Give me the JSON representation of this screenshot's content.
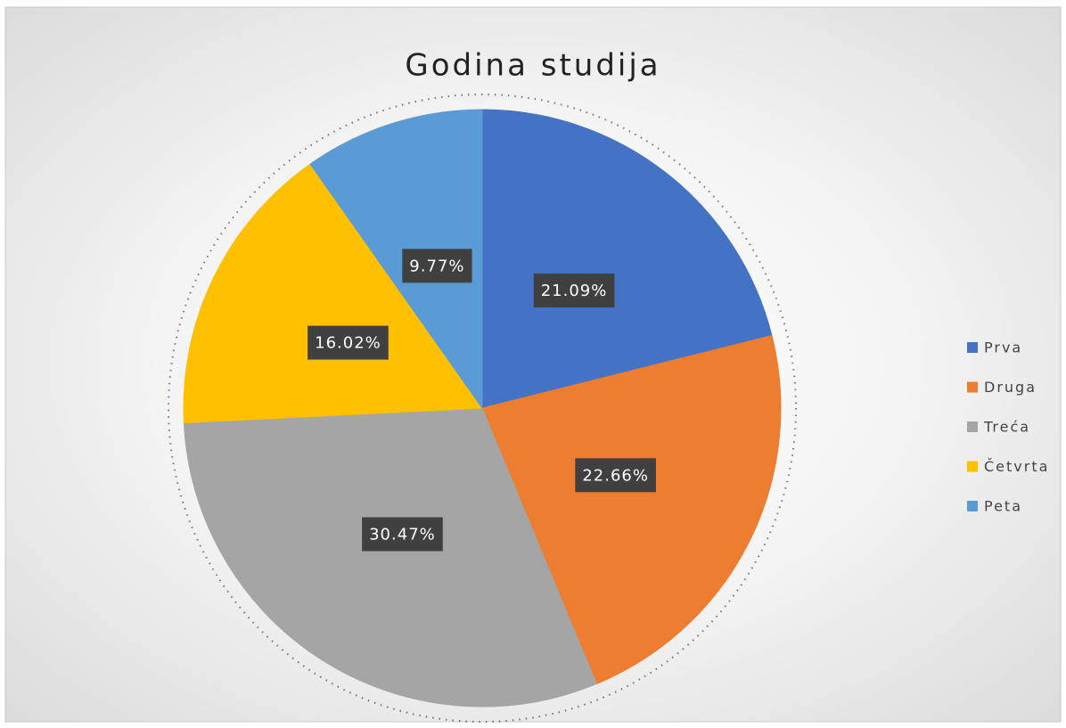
{
  "chart_data": {
    "type": "pie",
    "title": "Godina studija",
    "categories": [
      "Prva",
      "Druga",
      "Treća",
      "Četvrta",
      "Peta"
    ],
    "values": [
      21.09,
      22.66,
      30.47,
      16.02,
      9.77
    ],
    "value_labels": [
      "21.09%",
      "22.66%",
      "30.47%",
      "16.02%",
      "9.77%"
    ],
    "colors": [
      "#4472c4",
      "#ed7d31",
      "#a5a5a5",
      "#ffc000",
      "#5b9bd5"
    ],
    "legend": "right"
  }
}
